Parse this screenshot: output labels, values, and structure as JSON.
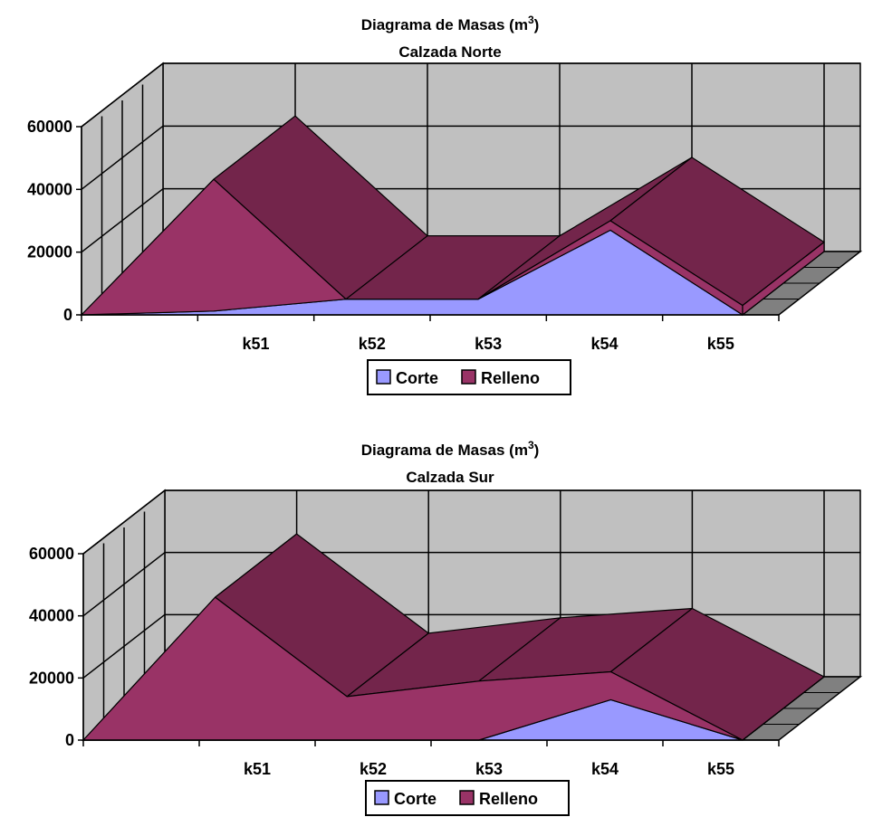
{
  "colors": {
    "corte_front": "#9999FF",
    "corte_top": "#7272C6",
    "relleno_front": "#993366",
    "relleno_top": "#73254B",
    "wall": "#C0C0C0",
    "floor": "#808080",
    "grid": "#000000"
  },
  "chart_data": [
    {
      "type": "area",
      "subtype": "3d-stacked-area",
      "title": "Diagrama de Masas (m",
      "title_superscript": "3",
      "title_suffix": ")",
      "subtitle": "Calzada Norte",
      "categories": [
        "",
        "k51",
        "k52",
        "k53",
        "k54",
        "k55"
      ],
      "ylim": [
        0,
        60000
      ],
      "yticks": [
        "0",
        "20000",
        "40000",
        "60000"
      ],
      "grid": true,
      "legend_position": "bottom",
      "series": [
        {
          "name": "Corte",
          "values": [
            0,
            1200,
            5000,
            5000,
            27000,
            0
          ]
        },
        {
          "name": "Relleno",
          "values": [
            0,
            42000,
            0,
            0,
            3000,
            3000
          ]
        }
      ]
    },
    {
      "type": "area",
      "subtype": "3d-stacked-area",
      "title": "Diagrama de Masas (m",
      "title_superscript": "3",
      "title_suffix": ")",
      "subtitle": "Calzada Sur",
      "categories": [
        "",
        "k51",
        "k52",
        "k53",
        "k54",
        "k55"
      ],
      "ylim": [
        0,
        60000
      ],
      "yticks": [
        "0",
        "20000",
        "40000",
        "60000"
      ],
      "grid": true,
      "legend_position": "bottom",
      "series": [
        {
          "name": "Corte",
          "values": [
            0,
            0,
            0,
            0,
            13000,
            0
          ]
        },
        {
          "name": "Relleno",
          "values": [
            0,
            46000,
            14000,
            19000,
            9000,
            0
          ]
        }
      ]
    }
  ]
}
